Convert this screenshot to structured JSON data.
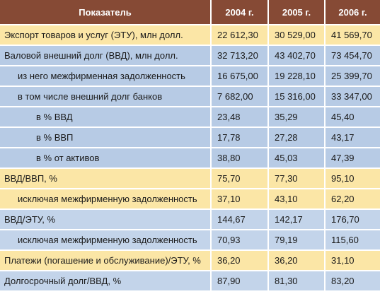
{
  "table": {
    "headers": [
      "Показатель",
      "2004 г.",
      "2005 г.",
      "2006 г."
    ],
    "rows": [
      {
        "label": "Экспорт товаров и услуг (ЭТУ), млн долл.",
        "values": [
          "22 612,30",
          "30 529,00",
          "41 569,70"
        ]
      },
      {
        "label": "Валовой внешний долг (ВВД), млн долл.",
        "values": [
          "32 713,20",
          "43 402,70",
          "73 454,70"
        ]
      },
      {
        "label": "из него межфирменная задолженность",
        "values": [
          "16 675,00",
          "19 228,10",
          "25 399,70"
        ]
      },
      {
        "label": "в том числе внешний долг банков",
        "values": [
          "7 682,00",
          "15 316,00",
          "33 347,00"
        ]
      },
      {
        "label": "в % ВВД",
        "values": [
          "23,48",
          "35,29",
          "45,40"
        ]
      },
      {
        "label": "в % ВВП",
        "values": [
          "17,78",
          "27,28",
          "43,17"
        ]
      },
      {
        "label": "в % от активов",
        "values": [
          "38,80",
          "45,03",
          "47,39"
        ]
      },
      {
        "label": "ВВД/ВВП, %",
        "values": [
          "75,70",
          "77,30",
          "95,10"
        ]
      },
      {
        "label": "исключая межфирменную задолженность",
        "values": [
          "37,10",
          "43,10",
          "62,20"
        ]
      },
      {
        "label": "ВВД/ЭТУ, %",
        "values": [
          "144,67",
          "142,17",
          "176,70"
        ]
      },
      {
        "label": "исключая межфирменную задолженность",
        "values": [
          "70,93",
          "79,19",
          "115,60"
        ]
      },
      {
        "label": "Платежи (погашение и обслуживание)/ЭТУ, %",
        "values": [
          "36,20",
          "36,20",
          "31,10"
        ]
      },
      {
        "label": "Долгосрочный долг/ВВД, %",
        "values": [
          "87,90",
          "81,30",
          "83,20"
        ]
      }
    ]
  },
  "colors": {
    "header_bg": "#864a35",
    "header_text": "#ffffff",
    "row_yellow": "#fbe6a6",
    "row_blue": "#b7cbe5"
  }
}
